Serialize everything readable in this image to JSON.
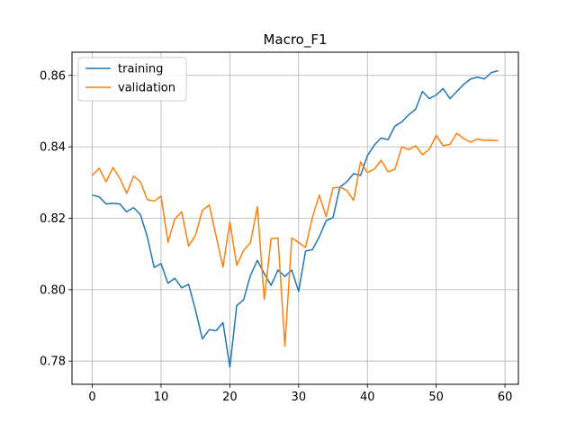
{
  "chart_data": {
    "type": "line",
    "title": "Macro_F1",
    "xlabel": "",
    "ylabel": "",
    "xlim": [
      -2.95,
      61.95
    ],
    "ylim": [
      0.7735,
      0.8665
    ],
    "xticks": [
      0,
      10,
      20,
      30,
      40,
      50,
      60
    ],
    "yticks": [
      0.78,
      0.8,
      0.82,
      0.84,
      0.86
    ],
    "ytick_labels": [
      "0.78",
      "0.80",
      "0.82",
      "0.84",
      "0.86"
    ],
    "grid": true,
    "legend_position": "upper-left",
    "x": [
      0,
      1,
      2,
      3,
      4,
      5,
      6,
      7,
      8,
      9,
      10,
      11,
      12,
      13,
      14,
      15,
      16,
      17,
      18,
      19,
      20,
      21,
      22,
      23,
      24,
      25,
      26,
      27,
      28,
      29,
      30,
      31,
      32,
      33,
      34,
      35,
      36,
      37,
      38,
      39,
      40,
      41,
      42,
      43,
      44,
      45,
      46,
      47,
      48,
      49,
      50,
      51,
      52,
      53,
      54,
      55,
      56,
      57,
      58,
      59
    ],
    "series": [
      {
        "name": "training",
        "color": "#1f77b4",
        "values": [
          0.8265,
          0.826,
          0.824,
          0.8242,
          0.824,
          0.8218,
          0.823,
          0.821,
          0.8148,
          0.8062,
          0.8073,
          0.8018,
          0.8032,
          0.8005,
          0.8015,
          0.7943,
          0.7862,
          0.7888,
          0.7885,
          0.7908,
          0.7783,
          0.7955,
          0.7972,
          0.804,
          0.8082,
          0.8045,
          0.8012,
          0.8055,
          0.8037,
          0.8055,
          0.7995,
          0.8108,
          0.8112,
          0.8148,
          0.8193,
          0.8202,
          0.8287,
          0.8302,
          0.8325,
          0.832,
          0.8375,
          0.8405,
          0.8425,
          0.842,
          0.8458,
          0.847,
          0.849,
          0.8505,
          0.8555,
          0.8535,
          0.8545,
          0.8563,
          0.8535,
          0.8555,
          0.8575,
          0.859,
          0.8595,
          0.859,
          0.8608,
          0.8613
        ]
      },
      {
        "name": "validation",
        "color": "#ff7f0e",
        "values": [
          0.832,
          0.834,
          0.8302,
          0.8342,
          0.8312,
          0.827,
          0.8318,
          0.8302,
          0.8252,
          0.8248,
          0.8262,
          0.8133,
          0.8198,
          0.8218,
          0.8122,
          0.8152,
          0.8222,
          0.8237,
          0.815,
          0.8063,
          0.819,
          0.8068,
          0.811,
          0.8132,
          0.8232,
          0.7972,
          0.8143,
          0.8145,
          0.7842,
          0.8145,
          0.8132,
          0.8118,
          0.8202,
          0.8265,
          0.8205,
          0.8285,
          0.8287,
          0.8278,
          0.825,
          0.8358,
          0.8328,
          0.8338,
          0.8362,
          0.833,
          0.8337,
          0.84,
          0.8392,
          0.8403,
          0.8378,
          0.8393,
          0.8432,
          0.8403,
          0.8407,
          0.8438,
          0.8423,
          0.8413,
          0.8422,
          0.8418,
          0.8419,
          0.8417
        ]
      }
    ]
  }
}
